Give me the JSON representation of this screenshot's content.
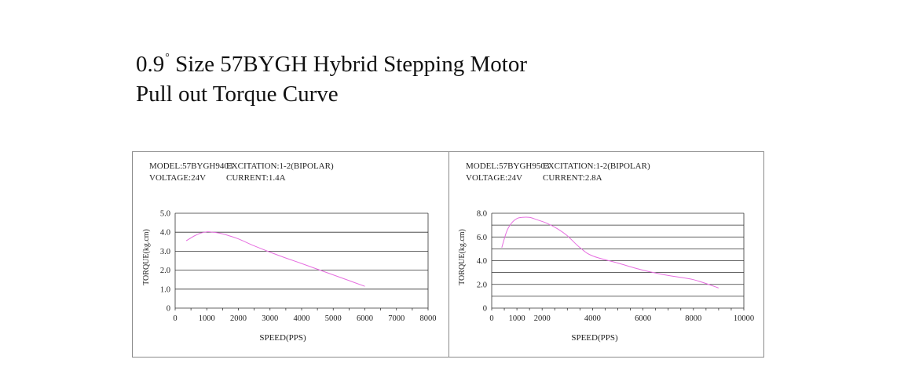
{
  "header": {
    "line1_prefix": "0.9",
    "degree_symbol": "°",
    "line1_rest": " Size 57BYGH  Hybrid Stepping Motor",
    "line2": "Pull out Torque Curve"
  },
  "colors": {
    "curve": "#e66ee0",
    "grid": "#333333",
    "frame": "#8a8a8a"
  },
  "chart_data": [
    {
      "type": "line",
      "info": {
        "model": "MODEL:57BYGH9403",
        "excitation": "EXCITATION:1-2(BIPOLAR)",
        "voltage": "VOLTAGE:24V",
        "current": "CURRENT:1.4A"
      },
      "xlabel": "SPEED(PPS)",
      "ylabel": "TORQUE(kg.cm)",
      "xlim": [
        0,
        8000
      ],
      "ylim": [
        0,
        5
      ],
      "x_ticks": [
        0,
        1000,
        2000,
        3000,
        4000,
        5000,
        6000,
        7000,
        8000
      ],
      "x_tick_labels": [
        "0",
        "1000",
        "2000",
        "3000",
        "4000",
        "5000",
        "6000",
        "7000",
        "8000"
      ],
      "y_ticks": [
        0,
        1,
        2,
        3,
        4,
        5
      ],
      "y_tick_labels": [
        "0",
        "1.0",
        "2.0",
        "3.0",
        "4.0",
        "5.0"
      ],
      "grid": "horizontal",
      "x_tick_marks": "minor",
      "series": [
        {
          "x": [
            350,
            600,
            800,
            1000,
            1200,
            1400,
            1700,
            2000,
            2500,
            3000,
            3500,
            4000,
            4500,
            5000,
            5500,
            6000
          ],
          "y": [
            3.55,
            3.8,
            3.95,
            4.02,
            4.0,
            3.95,
            3.82,
            3.65,
            3.28,
            2.95,
            2.64,
            2.35,
            2.05,
            1.75,
            1.45,
            1.15
          ]
        }
      ]
    },
    {
      "type": "line",
      "info": {
        "model": "MODEL:57BYGH9503",
        "excitation": "EXCITATION:1-2(BIPOLAR)",
        "voltage": "VOLTAGE:24V",
        "current": "CURRENT:2.8A"
      },
      "xlabel": "SPEED(PPS)",
      "ylabel": "TORQUE(kg.cm)",
      "xlim": [
        0,
        10000
      ],
      "ylim": [
        0,
        8
      ],
      "x_ticks": [
        0,
        1000,
        2000,
        4000,
        6000,
        8000,
        10000
      ],
      "x_tick_labels": [
        "0",
        "1000",
        "2000",
        "4000",
        "6000",
        "8000",
        "10000"
      ],
      "y_ticks": [
        0,
        2,
        4,
        6,
        8
      ],
      "y_tick_labels": [
        "0",
        "2.0",
        "4.0",
        "6.0",
        "8.0"
      ],
      "grid": "horizontal-half-steps",
      "x_tick_marks": "minor",
      "series": [
        {
          "x": [
            400,
            600,
            800,
            1000,
            1200,
            1500,
            1800,
            2200,
            2600,
            3000,
            3500,
            4000,
            5000,
            6000,
            7000,
            8000,
            9000
          ],
          "y": [
            5.1,
            6.5,
            7.2,
            7.55,
            7.65,
            7.65,
            7.45,
            7.15,
            6.7,
            6.1,
            5.1,
            4.4,
            3.8,
            3.2,
            2.75,
            2.4,
            1.7
          ]
        }
      ]
    }
  ]
}
